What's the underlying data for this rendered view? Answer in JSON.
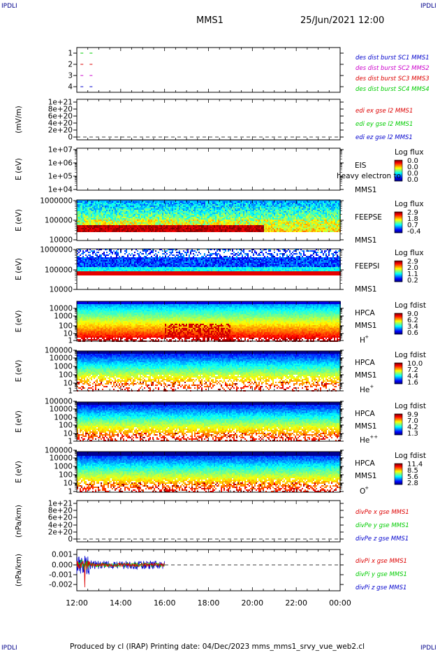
{
  "header": {
    "corner_left_top": "IPDLI",
    "corner_right_top": "IPDLI",
    "corner_left_bottom": "IPDLI",
    "corner_right_bottom": "IPDLI",
    "title": "MMS1",
    "date": "25/Jun/2021 12:00"
  },
  "footer": {
    "text": "Produced by cl (IRAP)   Printing date: 04/Dec/2023   mms_mms1_srvy_vue_web2.cl"
  },
  "colors": {
    "sc1": "#0000cd",
    "sc2": "#cc00cc",
    "sc3": "#dd0000",
    "sc4": "#00cc00",
    "x_component": "#dd0000",
    "y_component": "#00cc00",
    "z_component": "#0000cd"
  },
  "chart_data": [
    {
      "type": "scatter",
      "panel": "burst",
      "yticks": [
        "1",
        "2",
        "3",
        "4"
      ],
      "ylim": [
        0.5,
        4.5
      ],
      "legend": [
        "des dist burst SC1 MMS1",
        "des dist burst SC2 MMS2",
        "des dist burst SC3 MMS3",
        "des dist burst SC4 MMS4"
      ],
      "series": [
        {
          "level": 1,
          "x": [
            "12:10",
            "12:35"
          ]
        },
        {
          "level": 2,
          "x": [
            "12:10",
            "12:35"
          ]
        },
        {
          "level": 3,
          "x": [
            "12:10",
            "12:35"
          ]
        },
        {
          "level": 4,
          "x": [
            "12:10",
            "12:35"
          ]
        }
      ]
    },
    {
      "type": "line",
      "panel": "edi",
      "ylabel": "(mV/m)",
      "yticks": [
        "0",
        "2e+20",
        "4e+20",
        "6e+20",
        "8e+20",
        "1e+21"
      ],
      "legend": [
        "edi ex gse l2 MMS1",
        "edi ey gse l2 MMS1",
        "edi ez gse l2 MMS1"
      ]
    },
    {
      "type": "heatmap",
      "panel": "eis",
      "ylabel": "E (eV)",
      "yscale": "log",
      "yticks": [
        "1e+04",
        "1e+05",
        "1e+06",
        "1e+07"
      ],
      "label_lines": [
        "EIS",
        "MMS1"
      ],
      "overlay_text": "heavy electron to",
      "colorbar": {
        "title": "Log flux",
        "ticks": [
          "0.0",
          "0.0",
          "0.0",
          "0.0"
        ]
      }
    },
    {
      "type": "heatmap",
      "panel": "feepse",
      "ylabel": "E (eV)",
      "yscale": "log",
      "yticks": [
        "10000",
        "100000",
        "1000000"
      ],
      "label_lines": [
        "FEEPSE",
        "MMS1"
      ],
      "colorbar": {
        "title": "Log flux",
        "ticks": [
          "2.9",
          "1.8",
          "0.7",
          "-0.4"
        ]
      }
    },
    {
      "type": "heatmap",
      "panel": "feepsi",
      "ylabel": "E (eV)",
      "yscale": "log",
      "yticks": [
        "10000",
        "100000",
        "1000000"
      ],
      "label_lines": [
        "FEEPSI",
        "MMS1"
      ],
      "colorbar": {
        "title": "Log flux",
        "ticks": [
          "2.9",
          "2.0",
          "1.1",
          "0.2"
        ]
      }
    },
    {
      "type": "heatmap",
      "panel": "hpca-h",
      "ylabel": "E (eV)",
      "yscale": "log",
      "yticks": [
        "1",
        "10",
        "100",
        "1000",
        "10000"
      ],
      "label_lines": [
        "HPCA",
        "MMS1"
      ],
      "species": "H",
      "charge": "+",
      "colorbar": {
        "title": "Log fdist",
        "ticks": [
          "9.0",
          "6.2",
          "3.4",
          "0.6"
        ]
      }
    },
    {
      "type": "heatmap",
      "panel": "hpca-he",
      "ylabel": "E (eV)",
      "yscale": "log",
      "yticks": [
        "1",
        "10",
        "100",
        "1000",
        "10000",
        "100000"
      ],
      "label_lines": [
        "HPCA",
        "MMS1"
      ],
      "species": "He",
      "charge": "+",
      "colorbar": {
        "title": "Log fdist",
        "ticks": [
          "10.0",
          "7.2",
          "4.4",
          "1.6"
        ]
      }
    },
    {
      "type": "heatmap",
      "panel": "hpca-hepp",
      "ylabel": "E (eV)",
      "yscale": "log",
      "yticks": [
        "1",
        "10",
        "100",
        "1000",
        "10000",
        "100000"
      ],
      "label_lines": [
        "HPCA",
        "MMS1"
      ],
      "species": "He",
      "charge": "++",
      "colorbar": {
        "title": "Log fdist",
        "ticks": [
          "9.9",
          "7.0",
          "4.2",
          "1.3"
        ]
      }
    },
    {
      "type": "heatmap",
      "panel": "hpca-o",
      "ylabel": "E (eV)",
      "yscale": "log",
      "yticks": [
        "1",
        "10",
        "100",
        "1000",
        "10000",
        "100000"
      ],
      "label_lines": [
        "HPCA",
        "MMS1"
      ],
      "species": "O",
      "charge": "+",
      "colorbar": {
        "title": "Log fdist",
        "ticks": [
          "11.4",
          "8.5",
          "5.6",
          "2.8"
        ]
      }
    },
    {
      "type": "line",
      "panel": "divpe",
      "ylabel": "(nPa/km)",
      "yticks": [
        "0",
        "2e+20",
        "4e+20",
        "6e+20",
        "8e+20",
        "1e+21"
      ],
      "legend": [
        "divPe x gse MMS1",
        "divPe y gse MMS1",
        "divPe z gse MMS1"
      ]
    },
    {
      "type": "line",
      "panel": "divpi",
      "ylabel": "(nPa/km)",
      "yticks": [
        "-0.002",
        "-0.001",
        "0.000",
        "0.001"
      ],
      "ylim": [
        -0.0026,
        0.0015
      ],
      "legend": [
        "divPi x gse MMS1",
        "divPi y gse MMS1",
        "divPi z gse MMS1"
      ],
      "data_range": [
        "12:00",
        "16:00"
      ]
    }
  ],
  "xaxis": {
    "ticks": [
      "12:00",
      "14:00",
      "16:00",
      "18:00",
      "20:00",
      "22:00",
      "00:00"
    ],
    "range_hours": [
      0,
      12
    ]
  }
}
